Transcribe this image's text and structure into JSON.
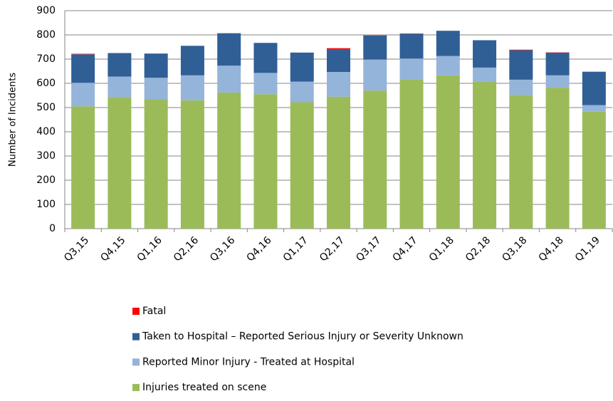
{
  "chart_data": {
    "type": "stacked_bar",
    "y_label": "Number of Incidents",
    "categories": [
      "Q3,15",
      "Q4,15",
      "Q1,16",
      "Q2,16",
      "Q3,16",
      "Q4,16",
      "Q1,17",
      "Q2,17",
      "Q3,17",
      "Q4,17",
      "Q1,18",
      "Q2,18",
      "Q3,18",
      "Q4,18",
      "Q1,19"
    ],
    "series": [
      {
        "name": "Fatal",
        "color": "#ff0000",
        "values": [
          2,
          0,
          0,
          0,
          0,
          0,
          0,
          4,
          1,
          1,
          0,
          0,
          2,
          1,
          0
        ]
      },
      {
        "name": "Taken to Hospital – Reported Serious Injury or Severity Unknown",
        "color": "#305f96",
        "values": [
          118,
          97,
          100,
          122,
          134,
          124,
          120,
          94,
          99,
          103,
          104,
          113,
          122,
          94,
          138
        ]
      },
      {
        "name": "Reported Minor Injury - Treated at Hospital",
        "color": "#95b4d9",
        "values": [
          97,
          85,
          88,
          103,
          111,
          88,
          85,
          102,
          128,
          85,
          80,
          58,
          63,
          51,
          27
        ]
      },
      {
        "name": "Injuries treated on scene",
        "color": "#9bbb59",
        "values": [
          505,
          543,
          535,
          530,
          562,
          555,
          522,
          545,
          570,
          617,
          633,
          607,
          552,
          582,
          483
        ]
      }
    ],
    "ylim": [
      0,
      900
    ],
    "yticks": [
      0,
      100,
      200,
      300,
      400,
      500,
      600,
      700,
      800,
      900
    ],
    "grid": true,
    "legend": "bottom"
  }
}
